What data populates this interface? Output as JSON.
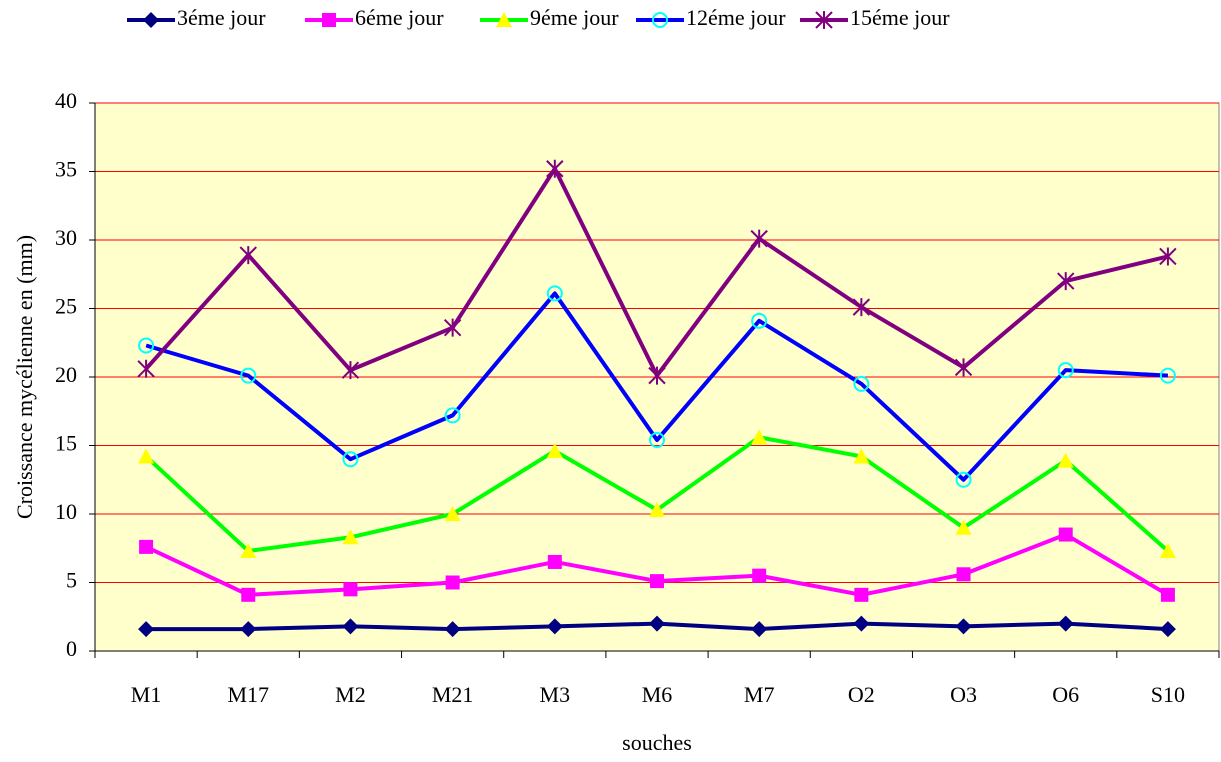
{
  "chart_data": {
    "type": "line",
    "x_label": "souches",
    "y_label": "Croissance mycélienne en (mm)",
    "categories": [
      "M1",
      "M17",
      "M2",
      "M21",
      "M3",
      "M6",
      "M7",
      "O2",
      "O3",
      "O6",
      "S10"
    ],
    "ylim": [
      0,
      40
    ],
    "yticks": [
      0,
      5,
      10,
      15,
      20,
      25,
      30,
      35,
      40
    ],
    "grid": true,
    "grid_color": "#ff0000",
    "plot_background": "#ffffcc",
    "legend": "top",
    "series": [
      {
        "name": "3éme jour",
        "color": "#000080",
        "marker": "diamond",
        "marker_color": "#000080",
        "values": [
          1.6,
          1.6,
          1.8,
          1.6,
          1.8,
          2.0,
          1.6,
          2.0,
          1.8,
          2.0,
          1.6
        ]
      },
      {
        "name": "6éme jour",
        "color": "#ff00ff",
        "marker": "square",
        "marker_color": "#ff00ff",
        "values": [
          7.6,
          4.1,
          4.5,
          5.0,
          6.5,
          5.1,
          5.5,
          4.1,
          5.6,
          8.5,
          4.1
        ]
      },
      {
        "name": "9éme jour",
        "color": "#00ff00",
        "marker": "triangle",
        "marker_color": "#ffff00",
        "values": [
          14.2,
          7.3,
          8.3,
          10.0,
          14.6,
          10.3,
          15.6,
          14.2,
          9.0,
          13.9,
          7.3
        ]
      },
      {
        "name": "12éme jour",
        "color": "#0000ff",
        "marker": "circle",
        "marker_color": "#00ffff",
        "values": [
          22.3,
          20.1,
          14.0,
          17.2,
          26.1,
          15.4,
          24.1,
          19.5,
          12.5,
          20.5,
          20.1
        ]
      },
      {
        "name": "15éme jour",
        "color": "#800080",
        "marker": "star",
        "marker_color": "#800080",
        "values": [
          20.6,
          28.9,
          20.5,
          23.6,
          35.2,
          20.1,
          30.1,
          25.1,
          20.7,
          27.0,
          28.8
        ]
      }
    ]
  }
}
